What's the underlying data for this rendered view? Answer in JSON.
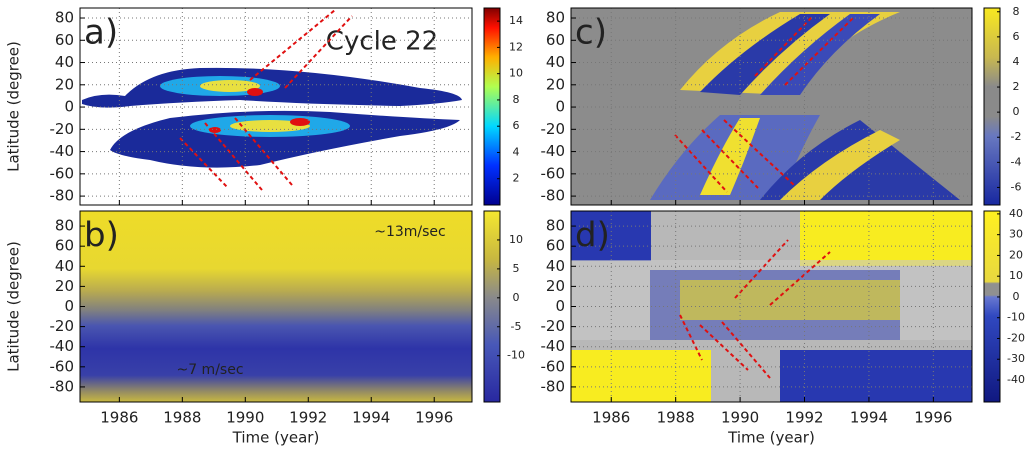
{
  "chart_data": [
    {
      "type": "heatmap",
      "title": "a)",
      "annotations": [
        "Cycle 22"
      ],
      "ylabel": "Latitude (degree)",
      "xlim": [
        1984.75,
        1997.2
      ],
      "xticks": [
        1986,
        1988,
        1990,
        1992,
        1994,
        1996
      ],
      "show_xtick_labels": false,
      "ylim": [
        -88,
        89
      ],
      "yticks": [
        -80,
        -60,
        -40,
        -20,
        0,
        20,
        40,
        60,
        80
      ],
      "grid": true,
      "colorbar": {
        "lim": [
          0,
          15
        ],
        "ticks": [
          2,
          4,
          6,
          8,
          10,
          12,
          14
        ]
      }
    },
    {
      "type": "heatmap",
      "title": "b)",
      "annotations": [
        "~13m/sec",
        "~7 m/sec"
      ],
      "ylabel": "Latitude (degree)",
      "xlabel": "Time (year)",
      "xlim": [
        1984.75,
        1997.2
      ],
      "xticks": [
        1986,
        1988,
        1990,
        1992,
        1994,
        1996
      ],
      "show_xtick_labels": true,
      "ylim": [
        -95,
        95
      ],
      "yticks": [
        -80,
        -60,
        -40,
        -20,
        0,
        20,
        40,
        60,
        80
      ],
      "grid": false,
      "colorbar": {
        "lim": [
          -18,
          15
        ],
        "ticks": [
          -10,
          -5,
          0,
          5,
          10
        ]
      }
    },
    {
      "type": "heatmap",
      "title": "c)",
      "annotations": [],
      "xlim": [
        1984.75,
        1997.2
      ],
      "xticks": [
        1986,
        1988,
        1990,
        1992,
        1994,
        1996
      ],
      "show_xtick_labels": false,
      "ylim": [
        -88,
        89
      ],
      "yticks": [
        -80,
        -60,
        -40,
        -20,
        0,
        20,
        40,
        60,
        80
      ],
      "grid": true,
      "colorbar": {
        "lim": [
          -7.4,
          8.3
        ],
        "ticks": [
          -6,
          -4,
          -2,
          0,
          2,
          4,
          6,
          8
        ]
      }
    },
    {
      "type": "heatmap",
      "title": "d)",
      "annotations": [],
      "xlabel": "Time (year)",
      "xlim": [
        1984.75,
        1997.2
      ],
      "xticks": [
        1986,
        1988,
        1990,
        1992,
        1994,
        1996
      ],
      "show_xtick_labels": true,
      "ylim": [
        -95,
        95
      ],
      "yticks": [
        -80,
        -60,
        -40,
        -20,
        0,
        20,
        40,
        60,
        80
      ],
      "grid": true,
      "colorbar": {
        "lim": [
          -50.6,
          41.4
        ],
        "ticks": [
          -40,
          -30,
          -20,
          -10,
          0,
          10,
          20,
          30,
          40
        ]
      }
    }
  ]
}
